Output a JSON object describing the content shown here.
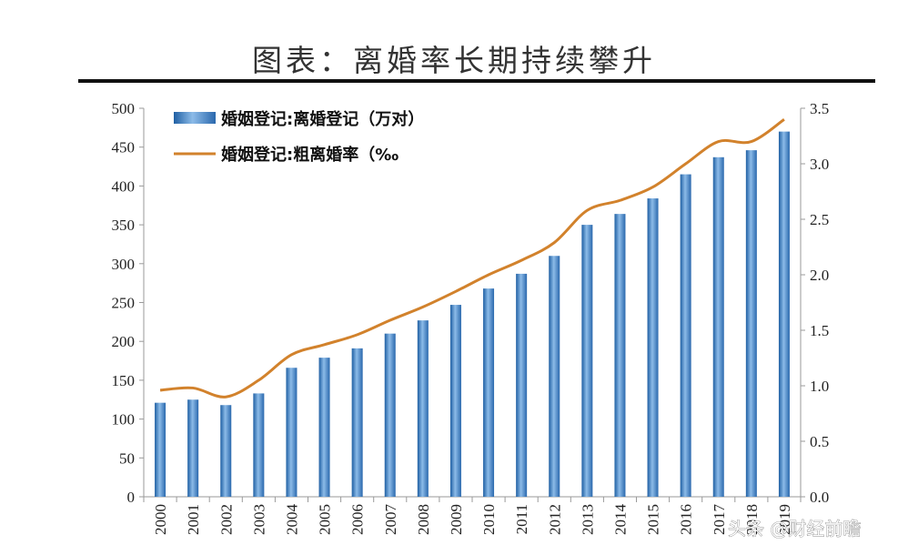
{
  "title": "图表：离婚率长期持续攀升",
  "watermark": "头条 @财经前瞻",
  "chart_data": {
    "type": "bar",
    "categories": [
      "2000",
      "2001",
      "2002",
      "2003",
      "2004",
      "2005",
      "2006",
      "2007",
      "2008",
      "2009",
      "2010",
      "2011",
      "2012",
      "2013",
      "2014",
      "2015",
      "2016",
      "2017",
      "2018",
      "2019"
    ],
    "series": [
      {
        "name": "婚姻登记:离婚登记（万对）",
        "type": "bar",
        "axis": "left",
        "color": "#4a86c4",
        "values": [
          121,
          125,
          118,
          133,
          166,
          179,
          191,
          210,
          227,
          247,
          268,
          287,
          310,
          350,
          364,
          384,
          415,
          437,
          446,
          470
        ]
      },
      {
        "name": "婚姻登记:粗离婚率（‰",
        "type": "line",
        "axis": "right",
        "color": "#d2822c",
        "values": [
          0.96,
          0.98,
          0.9,
          1.05,
          1.28,
          1.37,
          1.46,
          1.59,
          1.71,
          1.85,
          2.0,
          2.13,
          2.29,
          2.58,
          2.67,
          2.79,
          3.0,
          3.2,
          3.2,
          3.4
        ]
      }
    ],
    "y_left": {
      "ylim": [
        0,
        500
      ],
      "ticks": [
        "0",
        "50",
        "100",
        "150",
        "200",
        "250",
        "300",
        "350",
        "400",
        "450",
        "500"
      ]
    },
    "y_right": {
      "ylim": [
        0,
        3.5
      ],
      "ticks": [
        "0.0",
        "0.5",
        "1.0",
        "1.5",
        "2.0",
        "2.5",
        "3.0",
        "3.5"
      ]
    },
    "grid": false,
    "legend": "top-left"
  }
}
